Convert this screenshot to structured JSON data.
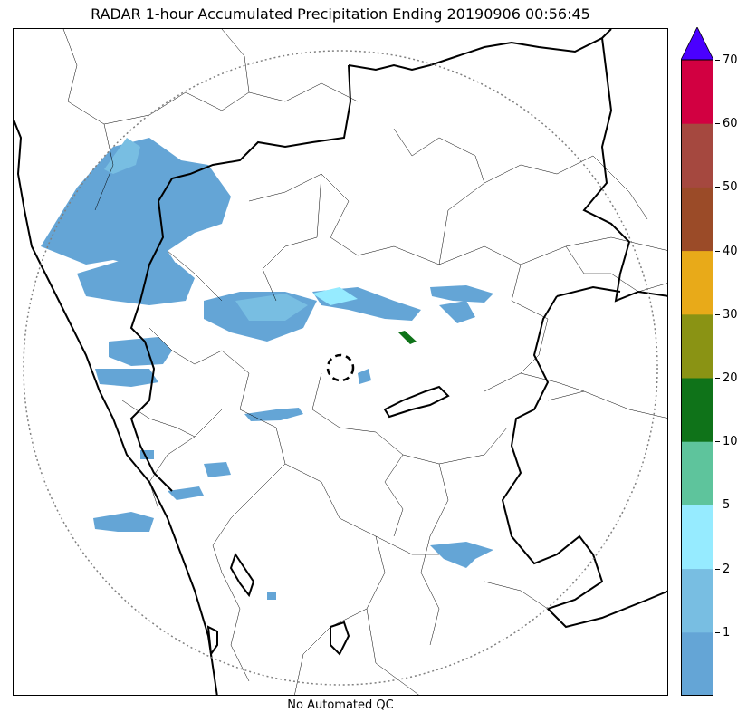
{
  "title": "RADAR 1-hour Accumulated Precipitation Ending 20190906 00:56:45",
  "footer": "No Automated QC",
  "colorbar": {
    "extend_color": "#4a00ff",
    "bins": [
      {
        "color": "#64a5d6"
      },
      {
        "color": "#78bee2"
      },
      {
        "color": "#96ebff"
      },
      {
        "color": "#5ec49c"
      },
      {
        "color": "#0f7319"
      },
      {
        "color": "#8a9314"
      },
      {
        "color": "#e8aa19"
      },
      {
        "color": "#9b4b28"
      },
      {
        "color": "#a5483f"
      },
      {
        "color": "#d20041"
      }
    ],
    "tick_labels": [
      "1",
      "2",
      "5",
      "10",
      "20",
      "30",
      "40",
      "50",
      "60",
      "70"
    ]
  },
  "map": {
    "precip_colors": {
      "light": "#64a5d6",
      "medium": "#78bee2",
      "moderate": "#96ebff",
      "heavy": "#0f7319"
    },
    "boundary_color": "#000000",
    "range_ring_color": "#808080"
  }
}
